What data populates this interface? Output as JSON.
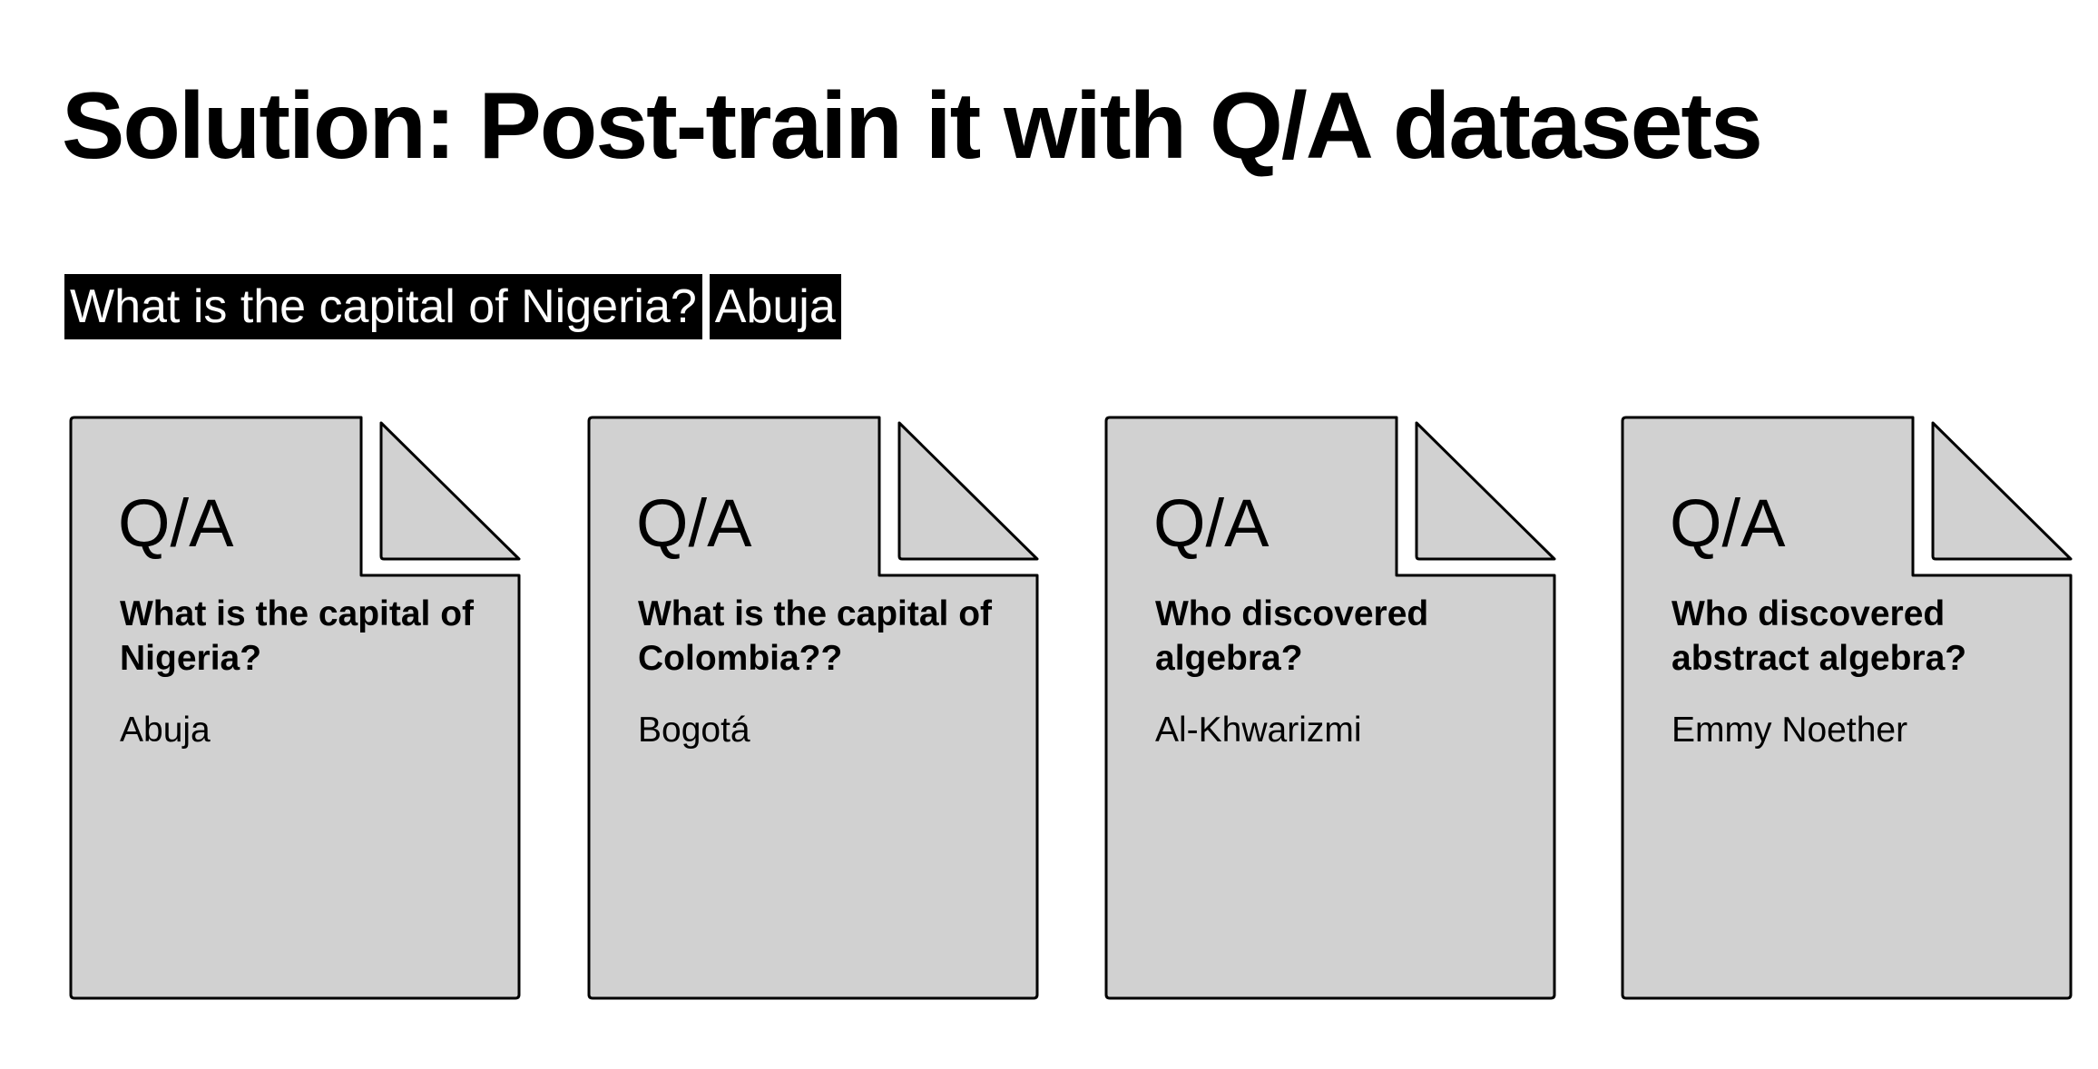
{
  "title": "Solution: Post-train it with Q/A datasets",
  "example": {
    "question": "What is the capital of Nigeria?",
    "answer": "Abuja"
  },
  "documents": [
    {
      "type": "Q/A",
      "question": "What is the capital of Nigeria?",
      "answer": "Abuja"
    },
    {
      "type": "Q/A",
      "question": "What is the capital of Colombia??",
      "answer": "Bogotá"
    },
    {
      "type": "Q/A",
      "question": "Who discovered algebra?",
      "answer": "Al-Khwarizmi"
    },
    {
      "type": "Q/A",
      "question": "Who discovered abstract algebra?",
      "answer": "Emmy Noether"
    }
  ],
  "colors": {
    "document_fill": "#d1d1d1",
    "highlight_bg": "#000000",
    "highlight_text": "#ffffff"
  }
}
